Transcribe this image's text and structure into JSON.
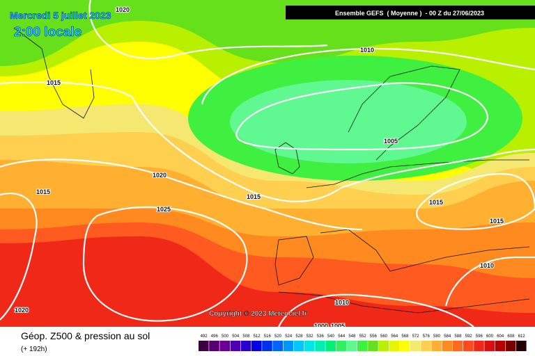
{
  "header": {
    "date": "Mercredi 5 juillet 2023",
    "time": "2:00 locale",
    "model": "Ensemble GEFS  ( Moyenne )  - 00 Z du 27/06/2023"
  },
  "footer": {
    "title": "Géop. Z500 & pression au sol",
    "lead": "(+ 192h)",
    "copyright": "Copyright © 2023 Meteociel.fr"
  },
  "isobar_labels": [
    "1020",
    "1015",
    "1010",
    "1005",
    "1020",
    "1015",
    "1015",
    "1025",
    "1015",
    "1015",
    "1010",
    "1020",
    "1010",
    "1000",
    "1005"
  ],
  "legend": {
    "values": [
      492,
      496,
      500,
      504,
      508,
      512,
      516,
      520,
      524,
      528,
      532,
      536,
      540,
      544,
      548,
      552,
      556,
      560,
      564,
      568,
      572,
      576,
      580,
      584,
      588,
      592,
      596,
      600,
      604,
      608,
      612
    ],
    "colors": [
      "#3a0040",
      "#55006e",
      "#6a0096",
      "#5000b4",
      "#2800d0",
      "#0000e6",
      "#0030f0",
      "#0064ff",
      "#0096ff",
      "#00c8ff",
      "#00e6e6",
      "#00f0b4",
      "#00f078",
      "#30f060",
      "#60f890",
      "#40f040",
      "#66e01a",
      "#b8f000",
      "#e6f500",
      "#ffff00",
      "#f5e870",
      "#ffd050",
      "#ffb030",
      "#ff8a20",
      "#ff6a20",
      "#ff4a20",
      "#f02818",
      "#d81010",
      "#b40000",
      "#780000",
      "#200000"
    ]
  }
}
